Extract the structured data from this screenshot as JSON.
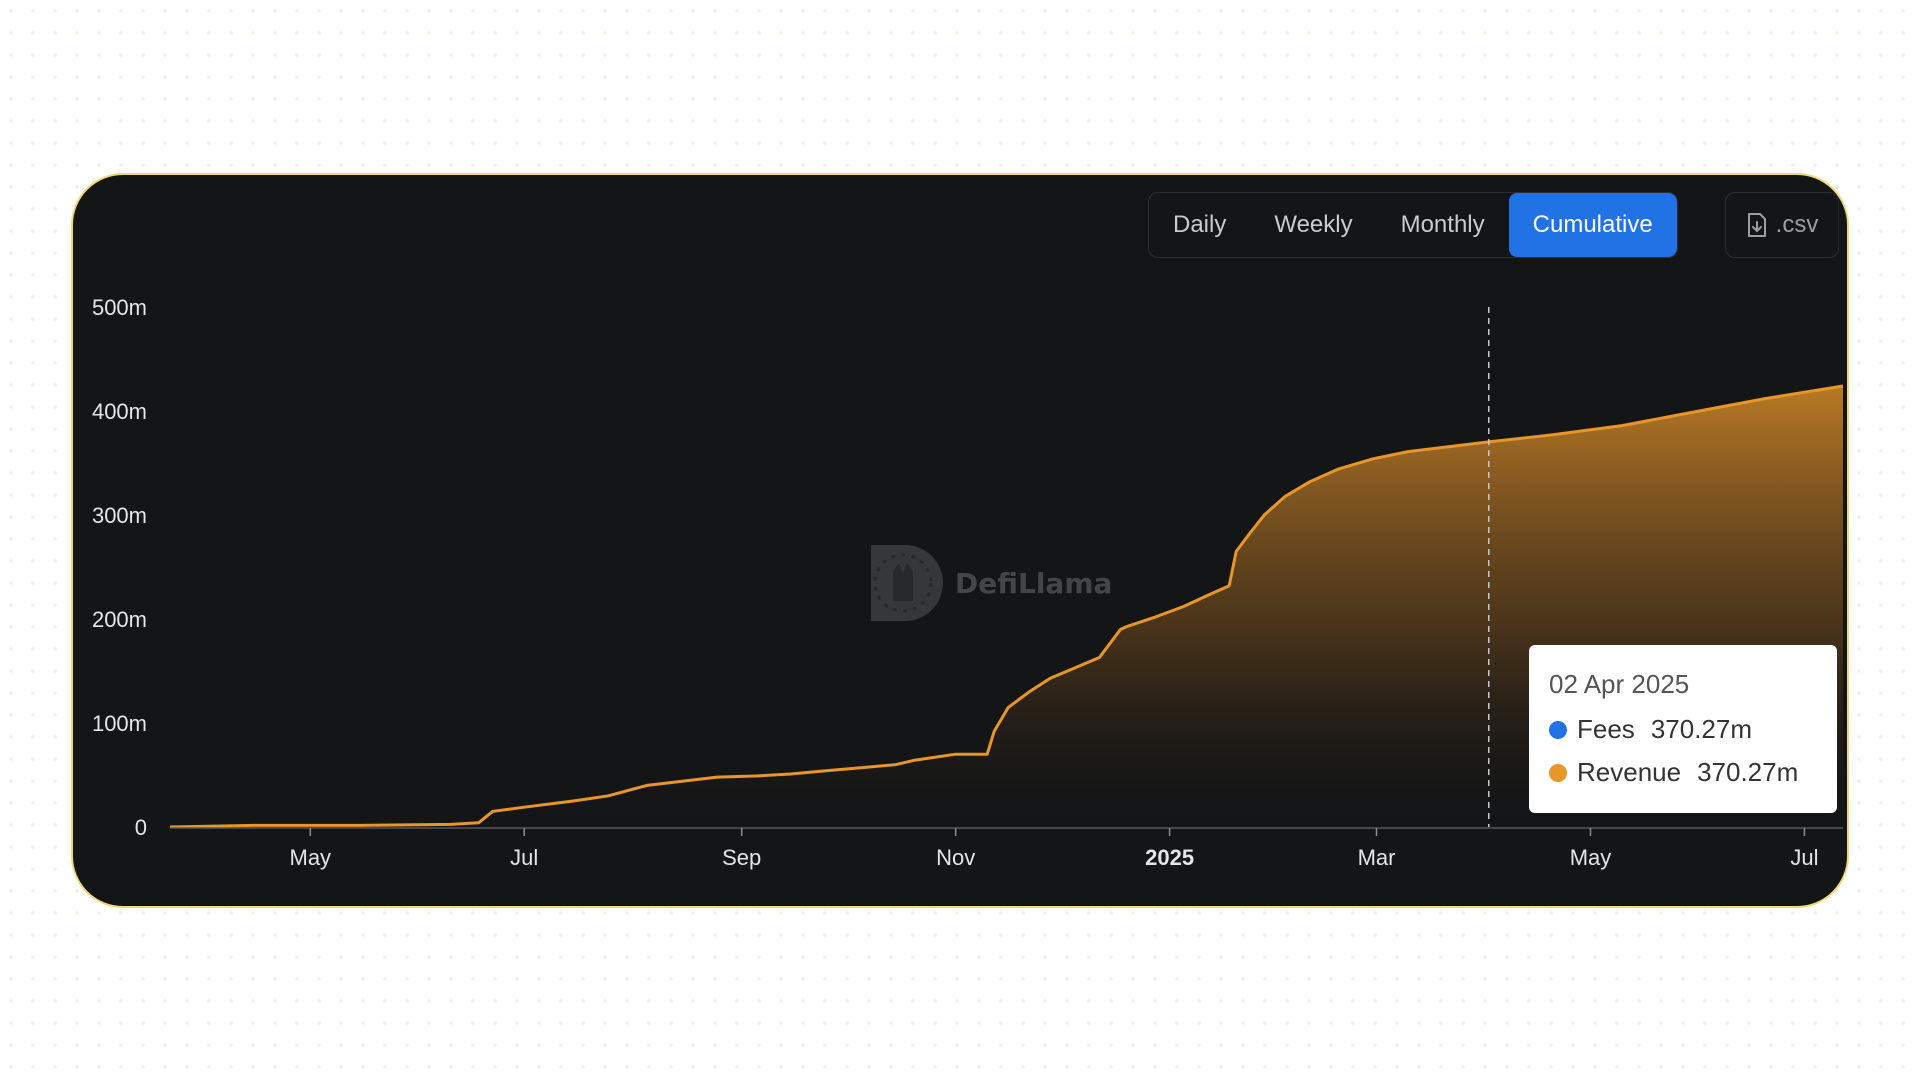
{
  "toggles": [
    {
      "label": "Daily",
      "active": false
    },
    {
      "label": "Weekly",
      "active": false
    },
    {
      "label": "Monthly",
      "active": false
    },
    {
      "label": "Cumulative",
      "active": true
    }
  ],
  "csv_label": ".csv",
  "csv_icon": "file-download-icon",
  "watermark": "DefiLlama",
  "colors": {
    "fees": "#2172e5",
    "revenue": "#e8962a",
    "accent": "#2172e5"
  },
  "tooltip": {
    "date": "02 Apr 2025",
    "rows": [
      {
        "label": "Fees",
        "value": "370.27m"
      },
      {
        "label": "Revenue",
        "value": "370.27m"
      }
    ]
  },
  "chart_data": {
    "type": "area",
    "title": "",
    "xlabel": "",
    "ylabel": "",
    "ylim": [
      0,
      500
    ],
    "y_unit": "m",
    "yticks": [
      "0",
      "100m",
      "200m",
      "300m",
      "400m",
      "500m"
    ],
    "xlim": [
      "2024-03-22",
      "2025-07-12"
    ],
    "xticks": [
      {
        "date": "2024-05-01",
        "label": "May"
      },
      {
        "date": "2024-07-01",
        "label": "Jul"
      },
      {
        "date": "2024-09-01",
        "label": "Sep"
      },
      {
        "date": "2024-11-01",
        "label": "Nov"
      },
      {
        "date": "2025-01-01",
        "label": "2025",
        "bold": true
      },
      {
        "date": "2025-03-01",
        "label": "Mar"
      },
      {
        "date": "2025-05-01",
        "label": "May"
      },
      {
        "date": "2025-07-01",
        "label": "Jul"
      }
    ],
    "grid": false,
    "legend": "tooltip",
    "hover_date": "2025-04-02",
    "series": [
      {
        "name": "Revenue",
        "x": [
          "2024-03-22",
          "2024-04-15",
          "2024-05-15",
          "2024-06-10",
          "2024-06-18",
          "2024-06-22",
          "2024-07-01",
          "2024-07-15",
          "2024-07-25",
          "2024-08-05",
          "2024-08-15",
          "2024-08-25",
          "2024-09-05",
          "2024-09-15",
          "2024-09-25",
          "2024-10-05",
          "2024-10-15",
          "2024-10-20",
          "2024-11-01",
          "2024-11-10",
          "2024-11-12",
          "2024-11-16",
          "2024-11-22",
          "2024-11-28",
          "2024-12-05",
          "2024-12-12",
          "2024-12-18",
          "2024-12-20",
          "2024-12-28",
          "2025-01-05",
          "2025-01-12",
          "2025-01-18",
          "2025-01-20",
          "2025-01-24",
          "2025-01-28",
          "2025-02-03",
          "2025-02-10",
          "2025-02-18",
          "2025-02-28",
          "2025-03-10",
          "2025-03-20",
          "2025-04-02",
          "2025-04-20",
          "2025-05-10",
          "2025-06-01",
          "2025-06-20",
          "2025-07-12"
        ],
        "y": [
          0,
          1.5,
          1.5,
          2.5,
          4,
          15,
          19,
          25,
          30,
          40,
          44,
          48,
          49,
          51,
          54,
          57,
          60,
          64,
          70,
          70,
          92,
          115,
          130,
          143,
          153,
          163,
          190,
          193,
          202,
          212,
          223,
          232,
          265,
          283,
          300,
          318,
          332,
          344,
          354,
          361,
          365,
          370.27,
          377,
          386,
          400,
          412,
          424
        ]
      },
      {
        "name": "Fees",
        "x": [
          "2024-03-22",
          "2024-04-15",
          "2024-05-15",
          "2024-06-10",
          "2024-06-18",
          "2024-06-22",
          "2024-07-01",
          "2024-07-15",
          "2024-07-25",
          "2024-08-05",
          "2024-08-15",
          "2024-08-25",
          "2024-09-05",
          "2024-09-15",
          "2024-09-25",
          "2024-10-05",
          "2024-10-15",
          "2024-10-20",
          "2024-11-01",
          "2024-11-10",
          "2024-11-12",
          "2024-11-16",
          "2024-11-22",
          "2024-11-28",
          "2024-12-05",
          "2024-12-12",
          "2024-12-18",
          "2024-12-20",
          "2024-12-28",
          "2025-01-05",
          "2025-01-12",
          "2025-01-18",
          "2025-01-20",
          "2025-01-24",
          "2025-01-28",
          "2025-02-03",
          "2025-02-10",
          "2025-02-18",
          "2025-02-28",
          "2025-03-10",
          "2025-03-20",
          "2025-04-02",
          "2025-04-20",
          "2025-05-10",
          "2025-06-01",
          "2025-06-20",
          "2025-07-12"
        ],
        "y": [
          0,
          1.5,
          1.5,
          2.5,
          4,
          15,
          19,
          25,
          30,
          40,
          44,
          48,
          49,
          51,
          54,
          57,
          60,
          64,
          70,
          70,
          92,
          115,
          130,
          143,
          153,
          163,
          190,
          193,
          202,
          212,
          223,
          232,
          265,
          283,
          300,
          318,
          332,
          344,
          354,
          361,
          365,
          370.27,
          377,
          386,
          400,
          412,
          424
        ]
      }
    ]
  }
}
